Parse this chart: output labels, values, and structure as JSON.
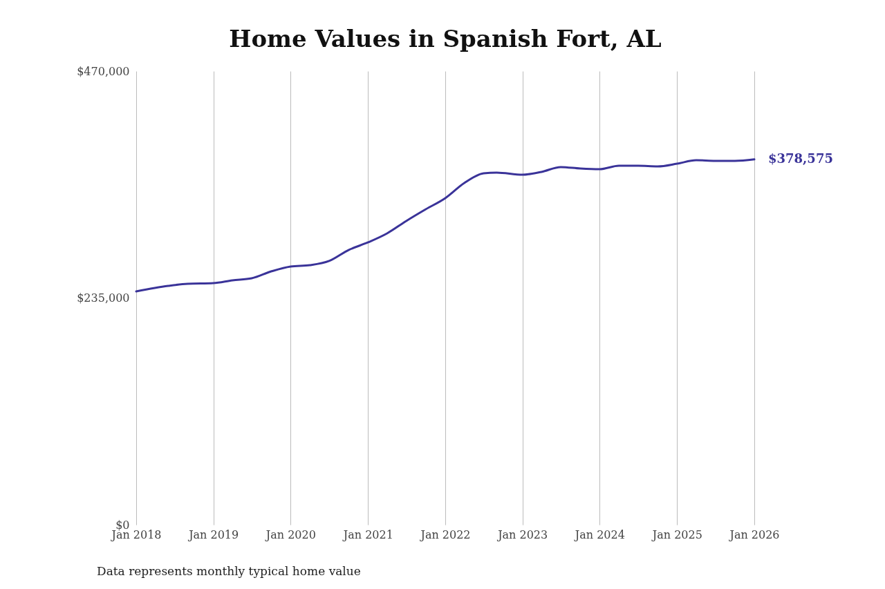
{
  "chart_data": {
    "type": "line",
    "title": "Home Values in Spanish Fort, AL",
    "x": [
      "2018-01",
      "2018-06",
      "2018-09",
      "2019-01",
      "2019-04",
      "2019-07",
      "2019-10",
      "2020-01",
      "2020-04",
      "2020-07",
      "2020-10",
      "2021-01",
      "2021-04",
      "2021-07",
      "2021-10",
      "2022-01",
      "2022-04",
      "2022-07",
      "2022-09",
      "2023-01",
      "2023-04",
      "2023-07",
      "2023-10",
      "2024-01",
      "2024-04",
      "2024-07",
      "2024-10",
      "2025-01",
      "2025-04",
      "2025-07",
      "2025-10",
      "2026-01"
    ],
    "series": [
      {
        "color": "#3a3399",
        "values": [
          241800,
          247500,
          249700,
          250400,
          253300,
          255400,
          262500,
          267600,
          269000,
          273300,
          284700,
          292600,
          301900,
          314800,
          326900,
          338400,
          354100,
          364100,
          364900,
          362700,
          365600,
          370600,
          369100,
          368400,
          372000,
          372000,
          371300,
          374100,
          377700,
          377000,
          377000,
          378575
        ]
      }
    ],
    "xlim": [
      "2018-01",
      "2026-01"
    ],
    "xticks": [
      {
        "value": "2018-01",
        "label": "Jan 2018"
      },
      {
        "value": "2019-01",
        "label": "Jan 2019"
      },
      {
        "value": "2020-01",
        "label": "Jan 2020"
      },
      {
        "value": "2021-01",
        "label": "Jan 2021"
      },
      {
        "value": "2022-01",
        "label": "Jan 2022"
      },
      {
        "value": "2023-01",
        "label": "Jan 2023"
      },
      {
        "value": "2024-01",
        "label": "Jan 2024"
      },
      {
        "value": "2025-01",
        "label": "Jan 2025"
      },
      {
        "value": "2026-01",
        "label": "Jan 2026"
      }
    ],
    "ylim": [
      0,
      470000
    ],
    "yticks": [
      {
        "value": 0,
        "label": "$0"
      },
      {
        "value": 235000,
        "label": "$235,000"
      },
      {
        "value": 470000,
        "label": "$470,000"
      }
    ],
    "grid": "x",
    "legend": false,
    "marker": "none",
    "line_style": "solid",
    "annotations": [
      {
        "text": "$378,575",
        "x": "2026-01",
        "y": 378575
      },
      "Data represents monthly typical home value"
    ]
  }
}
